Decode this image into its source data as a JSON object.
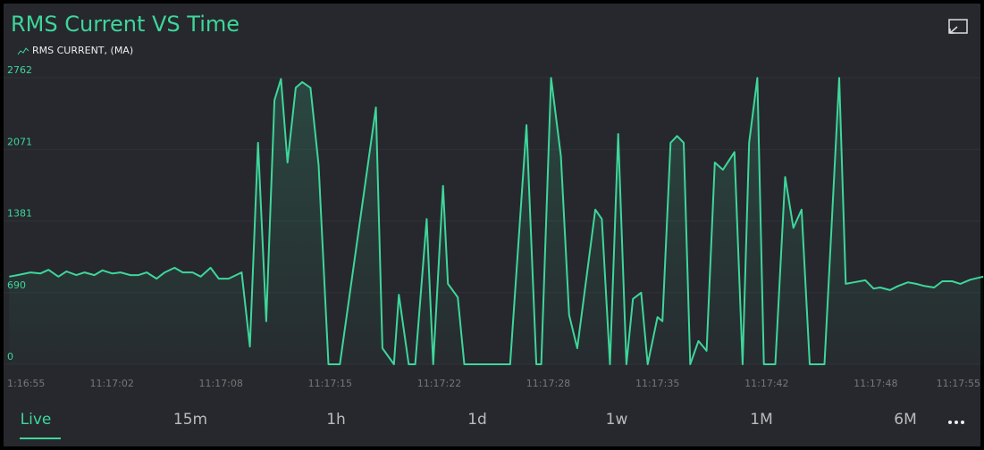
{
  "chart_data": {
    "type": "line",
    "title": "RMS Current VS Time",
    "series": [
      {
        "name": "RMS CURRENT, (MA)",
        "color": "#3ed69a",
        "values": [
          845,
          860,
          885,
          875,
          910,
          845,
          895,
          860,
          885,
          860,
          905,
          875,
          885,
          860,
          860,
          885,
          825,
          885,
          930,
          885,
          885,
          845,
          930,
          825,
          825,
          885,
          170,
          2135,
          415,
          2545,
          2750,
          1945,
          2665,
          2720,
          2665,
          1920,
          0,
          0,
          2475,
          155,
          0,
          670,
          0,
          0,
          1400,
          0,
          1720,
          775,
          645,
          0,
          0,
          2305,
          0,
          0,
          2760,
          2005,
          475,
          155,
          1490,
          1400,
          0,
          2220,
          0,
          630,
          690,
          0,
          455,
          415,
          2135,
          2200,
          2135,
          0,
          225,
          130,
          1945,
          1875,
          2045,
          0,
          2135,
          2760,
          0,
          0,
          1805,
          1315,
          1490,
          0,
          0,
          2760,
          775,
          790,
          810,
          730,
          740,
          715,
          755,
          790,
          775,
          755,
          740,
          800,
          800,
          775,
          815,
          845
        ]
      }
    ],
    "x": [
      0.4,
      0.9,
      1.7,
      2.3,
      2.8,
      3.4,
      3.9,
      4.5,
      5.0,
      5.6,
      6.1,
      6.7,
      7.2,
      7.8,
      8.3,
      8.8,
      9.4,
      9.9,
      10.5,
      11.0,
      11.6,
      12.1,
      12.7,
      13.2,
      13.8,
      14.6,
      15.1,
      15.6,
      16.1,
      16.6,
      17.0,
      17.4,
      17.9,
      18.3,
      18.8,
      19.3,
      19.9,
      20.6,
      22.8,
      23.2,
      23.9,
      24.2,
      24.8,
      25.2,
      25.9,
      26.3,
      26.9,
      27.2,
      27.8,
      28.2,
      31.0,
      32.0,
      32.6,
      32.9,
      33.5,
      34.1,
      34.6,
      35.1,
      36.2,
      36.6,
      37.1,
      37.6,
      38.1,
      38.5,
      39.0,
      39.4,
      40.0,
      40.3,
      40.8,
      41.2,
      41.6,
      42.0,
      42.5,
      43.0,
      43.5,
      44.0,
      44.7,
      45.2,
      45.6,
      46.1,
      46.5,
      47.2,
      47.8,
      48.3,
      48.8,
      49.3,
      50.2,
      51.1,
      51.5,
      52.0,
      52.7,
      53.2,
      53.6,
      54.2,
      54.7,
      55.3,
      55.8,
      56.3,
      56.9,
      57.4,
      58.0,
      58.5,
      59.1,
      59.9
    ],
    "xlim": [
      0,
      60
    ],
    "xticks": [
      {
        "value": 0,
        "label": "1:16:55"
      },
      {
        "value": 6.67,
        "label": "11:17:02"
      },
      {
        "value": 13.33,
        "label": "11:17:08"
      },
      {
        "value": 20,
        "label": "11:17:15"
      },
      {
        "value": 26.67,
        "label": "11:17:22"
      },
      {
        "value": 33.33,
        "label": "11:17:28"
      },
      {
        "value": 40,
        "label": "11:17:35"
      },
      {
        "value": 46.67,
        "label": "11:17:42"
      },
      {
        "value": 53.33,
        "label": "11:17:48"
      },
      {
        "value": 60,
        "label": "11:17:55"
      }
    ],
    "ylim": [
      0,
      2762
    ],
    "yticks": [
      0,
      690,
      1381,
      2071,
      2762
    ]
  },
  "tabs": [
    "Live",
    "15m",
    "1h",
    "1d",
    "1w",
    "1M",
    "6M"
  ],
  "active_tab": "Live"
}
